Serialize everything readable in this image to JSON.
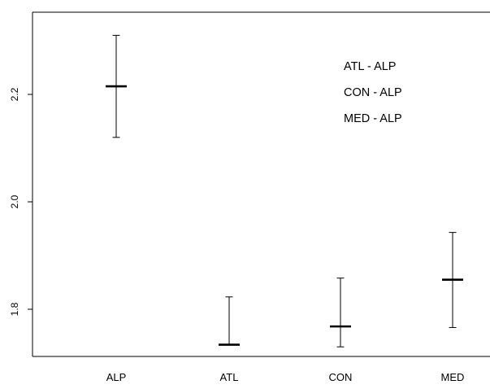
{
  "chart_data": {
    "type": "errorbar",
    "categories": [
      "ALP",
      "ATL",
      "CON",
      "MED"
    ],
    "series": [
      {
        "mean": [
          2.215,
          1.734,
          1.768,
          1.855
        ],
        "lower": [
          2.12,
          1.734,
          1.73,
          1.766
        ],
        "upper": [
          2.31,
          1.823,
          1.858,
          1.943
        ]
      }
    ],
    "yticks": [
      1.8,
      2.0,
      2.2
    ],
    "ylim": [
      1.7,
      2.35
    ],
    "annotations": [
      "ATL - ALP",
      "CON - ALP",
      "MED - ALP"
    ],
    "grid": false
  }
}
